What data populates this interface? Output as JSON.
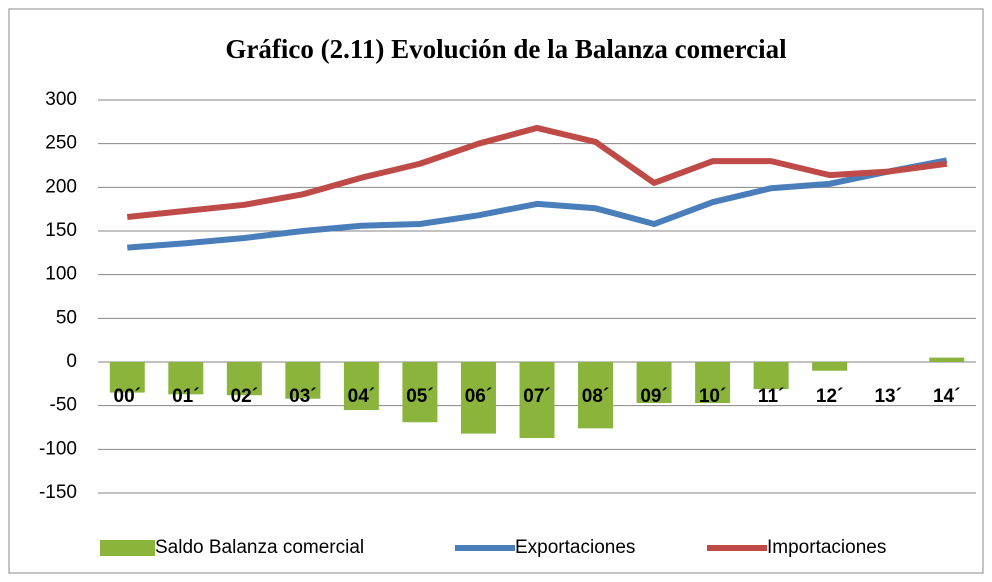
{
  "chart_data": {
    "type": "combo",
    "title": "Gráfico (2.11) Evolución de la Balanza comercial",
    "categories": [
      "00´",
      "01´",
      "02´",
      "03´",
      "04´",
      "05´",
      "06´",
      "07´",
      "08´",
      "09´",
      "10´",
      "11´",
      "12´",
      "13´",
      "14´"
    ],
    "series": [
      {
        "name": "Saldo Balanza comercial",
        "type": "bar",
        "color": "#8ab43c",
        "values": [
          -35,
          -37,
          -38,
          -42,
          -55,
          -69,
          -82,
          -87,
          -76,
          -47,
          -47,
          -31,
          -10,
          0,
          5
        ]
      },
      {
        "name": "Exportaciones",
        "type": "line",
        "color": "#4a7ebb",
        "values": [
          131,
          136,
          142,
          150,
          156,
          158,
          168,
          181,
          176,
          158,
          183,
          199,
          204,
          218,
          231
        ]
      },
      {
        "name": "Importaciones",
        "type": "line",
        "color": "#be4b48",
        "values": [
          166,
          173,
          180,
          192,
          211,
          227,
          250,
          268,
          252,
          205,
          230,
          230,
          214,
          218,
          227
        ]
      }
    ],
    "ylim": [
      -150,
      300
    ],
    "yticks": [
      -150,
      -100,
      -50,
      0,
      50,
      100,
      150,
      200,
      250,
      300
    ],
    "grid": true,
    "legend": "bottom"
  }
}
